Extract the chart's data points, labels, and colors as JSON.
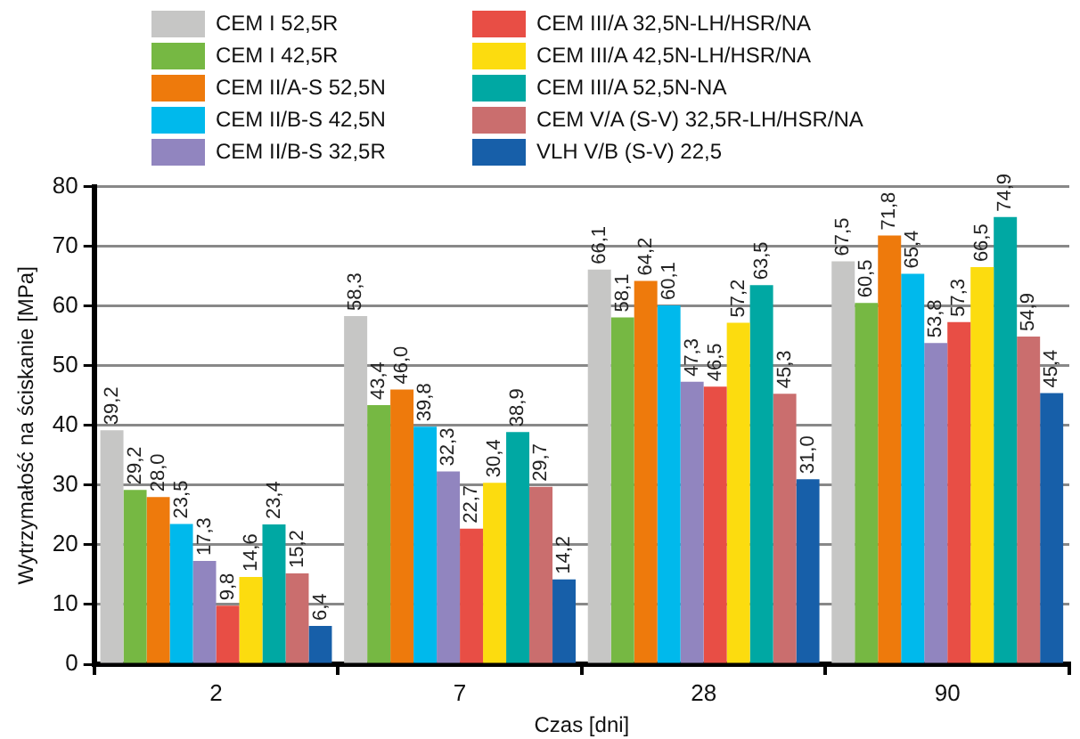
{
  "chart_data": {
    "type": "bar",
    "xlabel": "Czas [dni]",
    "ylabel": "Wytrzymałość na ściskanie [MPa]",
    "categories": [
      "2",
      "7",
      "28",
      "90"
    ],
    "ylim": [
      0,
      80
    ],
    "yticks": [
      0,
      10,
      20,
      30,
      40,
      50,
      60,
      70,
      80
    ],
    "grid": "y",
    "legend": "top left",
    "series": [
      {
        "name": "CEM I 52,5R",
        "color": "#c6c6c5",
        "values": [
          39.2,
          58.3,
          66.1,
          67.5
        ],
        "value_labels": [
          "39,2",
          "58,3",
          "66,1",
          "67,5"
        ]
      },
      {
        "name": "CEM I 42,5R",
        "color": "#76b843",
        "values": [
          29.2,
          43.4,
          58.1,
          60.5
        ],
        "value_labels": [
          "29,2",
          "43,4",
          "58,1",
          "60,5"
        ]
      },
      {
        "name": "CEM II/A-S 52,5N",
        "color": "#ee7a0c",
        "values": [
          28.0,
          46.0,
          64.2,
          71.8
        ],
        "value_labels": [
          "28,0",
          "46,0",
          "64,2",
          "71,8"
        ]
      },
      {
        "name": "CEM II/B-S 42,5N",
        "color": "#00b9ec",
        "values": [
          23.5,
          39.8,
          60.1,
          65.4
        ],
        "value_labels": [
          "23,5",
          "39,8",
          "60,1",
          "65,4"
        ]
      },
      {
        "name": "CEM II/B-S 32,5R",
        "color": "#9185bf",
        "values": [
          17.3,
          32.3,
          47.3,
          53.8
        ],
        "value_labels": [
          "17,3",
          "32,3",
          "47,3",
          "53,8"
        ]
      },
      {
        "name": "CEM III/A 32,5N-LH/HSR/NA",
        "color": "#e84e45",
        "values": [
          9.8,
          22.7,
          46.5,
          57.3
        ],
        "value_labels": [
          "9,8",
          "22,7",
          "46,5",
          "57,3"
        ]
      },
      {
        "name": "CEM III/A 42,5N-LH/HSR/NA",
        "color": "#fcdc0f",
        "values": [
          14.6,
          30.4,
          57.2,
          66.5
        ],
        "value_labels": [
          "14,6",
          "30,4",
          "57,2",
          "66,5"
        ]
      },
      {
        "name": "CEM III/A 52,5N-NA",
        "color": "#00a8a3",
        "values": [
          23.4,
          38.9,
          63.5,
          74.9
        ],
        "value_labels": [
          "23,4",
          "38,9",
          "63,5",
          "74,9"
        ]
      },
      {
        "name": "CEM V/A (S-V) 32,5R-LH/HSR/NA",
        "color": "#ca6e6e",
        "values": [
          15.2,
          29.7,
          45.3,
          54.9
        ],
        "value_labels": [
          "15,2",
          "29,7",
          "45,3",
          "54,9"
        ]
      },
      {
        "name": "VLH V/B (S-V) 22,5",
        "color": "#175fa9",
        "values": [
          6.4,
          14.2,
          31.0,
          45.4
        ],
        "value_labels": [
          "6,4",
          "14,2",
          "31,0",
          "45,4"
        ]
      }
    ]
  }
}
